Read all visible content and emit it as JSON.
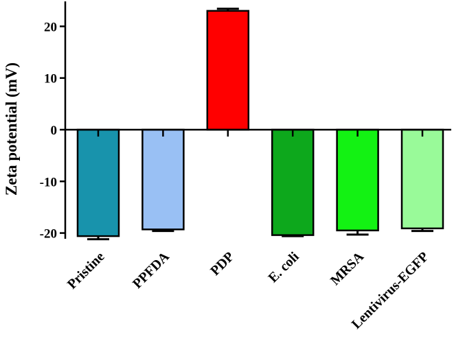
{
  "chart_data": {
    "type": "bar",
    "title": "",
    "xlabel": "",
    "ylabel": "Zeta potential (mV)",
    "ylim": [
      -22,
      25
    ],
    "yticks": [
      20,
      10,
      0,
      -10,
      -20
    ],
    "ytick_labels": [
      "20",
      "10",
      "0",
      "-10",
      "-20"
    ],
    "grid": false,
    "categories": [
      "Pristine",
      "PPFDA",
      "PDP",
      "E. coli",
      "MRSA",
      "Lentivirus-EGFP"
    ],
    "values": [
      -20.6,
      -19.3,
      23.0,
      -20.4,
      -19.5,
      -19.1
    ],
    "errors": [
      0.6,
      0.3,
      0.4,
      0.2,
      0.8,
      0.5
    ],
    "colors": [
      "#1893AC",
      "#99C0F4",
      "#FF0000",
      "#0DA81C",
      "#13F213",
      "#99FA99"
    ]
  }
}
